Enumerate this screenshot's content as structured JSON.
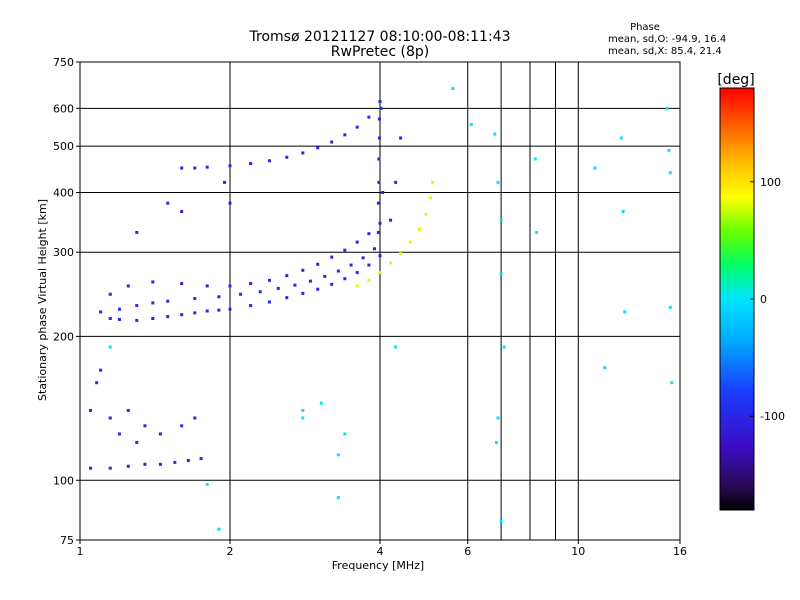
{
  "chart_data": {
    "type": "scatter",
    "title": "Tromsø 20121127 08:10:00-08:11:43",
    "subtitle": "RwPretec (8p)",
    "xlabel": "Frequency [MHz]",
    "ylabel": "Stationary phase Virtual Height [km]",
    "x_scale": "log",
    "y_scale": "log",
    "xlim": [
      1,
      16
    ],
    "ylim": [
      75,
      750
    ],
    "x_ticks": [
      1,
      2,
      4,
      6,
      10,
      16
    ],
    "x_tick_labels": [
      "1",
      "2",
      "4",
      "6",
      "10",
      "16"
    ],
    "x_grid": [
      2,
      4,
      6,
      7,
      8,
      9,
      10
    ],
    "y_ticks": [
      75,
      100,
      200,
      300,
      400,
      500,
      600,
      750
    ],
    "y_tick_labels": [
      "75",
      "100",
      "200",
      "300",
      "400",
      "500",
      "600",
      "750"
    ],
    "y_grid": [
      100,
      200,
      300,
      400,
      500,
      600
    ],
    "phase_info": {
      "heading": "Phase",
      "line_o": "mean, sd,O: -94.9, 16.4",
      "line_x": "mean, sd,X:  85.4, 21.4"
    },
    "colorbar": {
      "label": "[deg]",
      "min": -180,
      "max": 180,
      "ticks": [
        100,
        0,
        -100
      ],
      "tick_labels": [
        "100",
        "0",
        "-100"
      ]
    },
    "series": [
      {
        "name": "F-trace O lower (phase ~-100)",
        "color_phase": -100,
        "points": [
          [
            1.15,
            218
          ],
          [
            1.2,
            217
          ],
          [
            1.3,
            216
          ],
          [
            1.4,
            218
          ],
          [
            1.5,
            220
          ],
          [
            1.6,
            222
          ],
          [
            1.7,
            224
          ],
          [
            1.8,
            226
          ],
          [
            1.9,
            227
          ],
          [
            2.0,
            228
          ],
          [
            2.2,
            232
          ],
          [
            2.4,
            236
          ],
          [
            2.6,
            241
          ],
          [
            2.8,
            246
          ],
          [
            3.0,
            251
          ],
          [
            3.2,
            257
          ],
          [
            3.4,
            264
          ],
          [
            3.6,
            272
          ],
          [
            3.8,
            282
          ],
          [
            4.0,
            295
          ]
        ]
      },
      {
        "name": "F-trace O middle (phase ~-100)",
        "color_phase": -100,
        "points": [
          [
            1.1,
            225
          ],
          [
            1.2,
            228
          ],
          [
            1.3,
            232
          ],
          [
            1.4,
            235
          ],
          [
            1.5,
            237
          ],
          [
            1.7,
            240
          ],
          [
            1.9,
            242
          ],
          [
            2.1,
            245
          ],
          [
            2.3,
            248
          ],
          [
            2.5,
            252
          ],
          [
            2.7,
            256
          ],
          [
            2.9,
            261
          ],
          [
            3.1,
            267
          ],
          [
            3.3,
            274
          ],
          [
            3.5,
            282
          ],
          [
            3.7,
            292
          ],
          [
            3.9,
            305
          ]
        ]
      },
      {
        "name": "F-trace O upper (phase ~-100)",
        "color_phase": -100,
        "points": [
          [
            1.15,
            245
          ],
          [
            1.25,
            255
          ],
          [
            1.4,
            260
          ],
          [
            1.6,
            258
          ],
          [
            1.8,
            255
          ],
          [
            2.0,
            255
          ],
          [
            2.2,
            258
          ],
          [
            2.4,
            262
          ],
          [
            2.6,
            268
          ],
          [
            2.8,
            275
          ],
          [
            3.0,
            283
          ],
          [
            3.2,
            293
          ],
          [
            3.4,
            303
          ],
          [
            3.6,
            315
          ],
          [
            3.8,
            328
          ],
          [
            4.0,
            345
          ]
        ]
      },
      {
        "name": "F-trace X (phase ~80)",
        "color_phase": 80,
        "points": [
          [
            3.6,
            255
          ],
          [
            3.8,
            262
          ],
          [
            4.0,
            272
          ],
          [
            4.2,
            285
          ],
          [
            4.4,
            298
          ],
          [
            4.6,
            315
          ],
          [
            4.8,
            335
          ],
          [
            4.95,
            360
          ],
          [
            5.05,
            390
          ],
          [
            5.1,
            420
          ]
        ]
      },
      {
        "name": "Multi-hop F trace (phase ~-100)",
        "color_phase": -100,
        "points": [
          [
            1.6,
            450
          ],
          [
            1.8,
            452
          ],
          [
            2.0,
            455
          ],
          [
            2.2,
            460
          ],
          [
            2.4,
            466
          ],
          [
            2.6,
            474
          ],
          [
            2.8,
            484
          ],
          [
            3.0,
            496
          ],
          [
            3.2,
            510
          ],
          [
            3.4,
            528
          ],
          [
            3.6,
            548
          ],
          [
            3.8,
            575
          ]
        ]
      },
      {
        "name": "E-region trace (phase ~-100)",
        "color_phase": -100,
        "points": [
          [
            1.05,
            106
          ],
          [
            1.15,
            106
          ],
          [
            1.25,
            107
          ],
          [
            1.35,
            108
          ],
          [
            1.45,
            108
          ],
          [
            1.55,
            109
          ],
          [
            1.65,
            110
          ],
          [
            1.75,
            111
          ]
        ]
      },
      {
        "name": "Spread echoes (phase ~-100)",
        "color_phase": -100,
        "points": [
          [
            1.05,
            140
          ],
          [
            1.08,
            160
          ],
          [
            1.1,
            170
          ],
          [
            1.15,
            135
          ],
          [
            1.2,
            125
          ],
          [
            1.25,
            140
          ],
          [
            1.3,
            120
          ],
          [
            1.35,
            130
          ],
          [
            1.45,
            125
          ],
          [
            1.6,
            130
          ],
          [
            1.7,
            135
          ],
          [
            1.3,
            330
          ],
          [
            1.5,
            380
          ],
          [
            1.6,
            365
          ],
          [
            1.7,
            450
          ],
          [
            1.95,
            420
          ],
          [
            2.0,
            380
          ]
        ]
      },
      {
        "name": "Near-vertical trace at 4 MHz (phase ~-100)",
        "color_phase": -100,
        "points": [
          [
            3.97,
            330
          ],
          [
            3.97,
            380
          ],
          [
            3.98,
            420
          ],
          [
            3.98,
            470
          ],
          [
            3.99,
            520
          ],
          [
            3.99,
            570
          ],
          [
            4.0,
            620
          ],
          [
            4.02,
            600
          ],
          [
            4.05,
            400
          ],
          [
            4.2,
            350
          ],
          [
            4.3,
            420
          ],
          [
            4.4,
            520
          ]
        ]
      },
      {
        "name": "Scattered noise",
        "color_phase": 0,
        "points": [
          [
            6.8,
            530
          ],
          [
            6.9,
            420
          ],
          [
            7.0,
            350
          ],
          [
            7.0,
            270
          ],
          [
            7.1,
            190
          ],
          [
            6.9,
            135
          ],
          [
            6.85,
            120
          ],
          [
            7.0,
            82
          ],
          [
            8.2,
            470
          ],
          [
            8.25,
            330
          ],
          [
            10.8,
            450
          ],
          [
            12.2,
            520
          ],
          [
            12.3,
            365
          ],
          [
            12.4,
            225
          ],
          [
            15.1,
            600
          ],
          [
            15.2,
            490
          ],
          [
            15.3,
            440
          ],
          [
            15.3,
            230
          ],
          [
            15.4,
            160
          ],
          [
            11.3,
            172
          ],
          [
            4.3,
            190
          ],
          [
            3.4,
            125
          ],
          [
            3.3,
            113
          ],
          [
            3.3,
            92
          ],
          [
            2.8,
            140
          ],
          [
            2.8,
            135
          ],
          [
            1.8,
            98
          ],
          [
            1.9,
            79
          ],
          [
            1.15,
            190
          ],
          [
            5.6,
            660
          ],
          [
            6.1,
            555
          ],
          [
            3.05,
            145
          ]
        ]
      }
    ]
  }
}
